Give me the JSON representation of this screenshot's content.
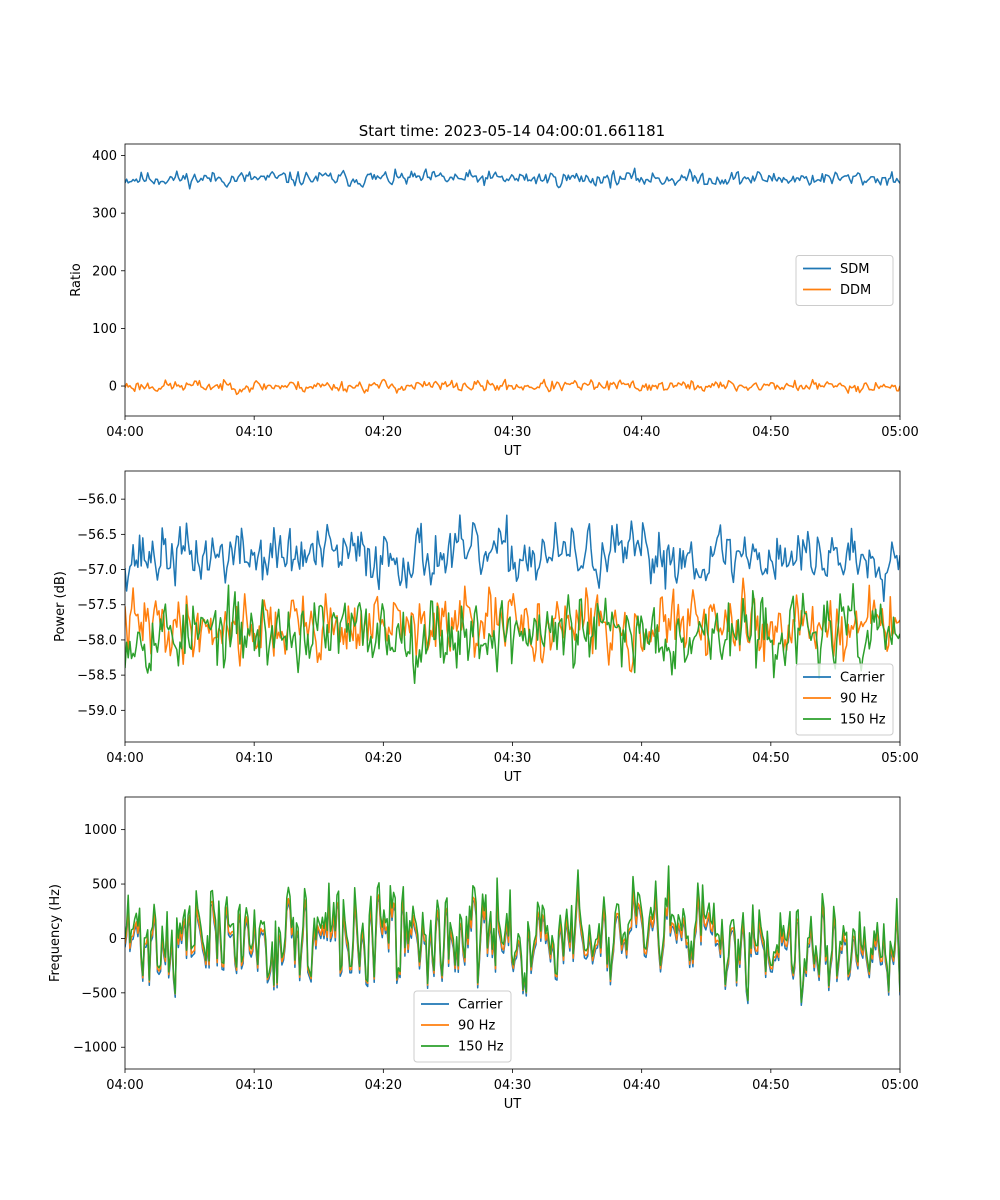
{
  "figure": {
    "title": "Start time: 2023-05-14 04:00:01.661181"
  },
  "chart_data": [
    {
      "type": "line",
      "xlabel": "UT",
      "ylabel": "Ratio",
      "x_ticks": [
        "04:00",
        "04:10",
        "04:20",
        "04:30",
        "04:40",
        "04:50",
        "05:00"
      ],
      "xlim": [
        0,
        60
      ],
      "ylim": [
        -52,
        420
      ],
      "y_ticks": [
        0,
        100,
        200,
        300,
        400
      ],
      "y_tick_labels": [
        "0",
        "100",
        "200",
        "300",
        "400"
      ],
      "legend_position": "center-right",
      "series": [
        {
          "name": "SDM",
          "color": "#1f77b4",
          "baseline": 360,
          "amplitude": 28,
          "seed": 11
        },
        {
          "name": "DDM",
          "color": "#ff7f0e",
          "baseline": 0,
          "amplitude": 22,
          "seed": 23
        }
      ]
    },
    {
      "type": "line",
      "xlabel": "UT",
      "ylabel": "Power (dB)",
      "x_ticks": [
        "04:00",
        "04:10",
        "04:20",
        "04:30",
        "04:40",
        "04:50",
        "05:00"
      ],
      "xlim": [
        0,
        60
      ],
      "ylim": [
        -59.45,
        -55.6
      ],
      "y_ticks": [
        -56.0,
        -56.5,
        -57.0,
        -57.5,
        -58.0,
        -58.5,
        -59.0
      ],
      "y_tick_labels": [
        "−56.0",
        "−56.5",
        "−57.0",
        "−57.5",
        "−58.0",
        "−58.5",
        "−59.0"
      ],
      "legend_position": "lower-right",
      "series": [
        {
          "name": "Carrier",
          "color": "#1f77b4",
          "baseline": -56.8,
          "amplitude": 0.9,
          "seed": 37
        },
        {
          "name": "90 Hz",
          "color": "#ff7f0e",
          "baseline": -57.8,
          "amplitude": 1.0,
          "seed": 41
        },
        {
          "name": "150 Hz",
          "color": "#2ca02c",
          "baseline": -57.9,
          "amplitude": 1.1,
          "seed": 53
        }
      ]
    },
    {
      "type": "line",
      "xlabel": "UT",
      "ylabel": "Frequency (Hz)",
      "x_ticks": [
        "04:00",
        "04:10",
        "04:20",
        "04:30",
        "04:40",
        "04:50",
        "05:00"
      ],
      "xlim": [
        0,
        60
      ],
      "ylim": [
        -1200,
        1300
      ],
      "y_ticks": [
        1000,
        500,
        0,
        -500,
        -1000
      ],
      "y_tick_labels": [
        "1000",
        "500",
        "0",
        "−500",
        "−1000"
      ],
      "legend_position": "lower-center",
      "series": [
        {
          "name": "Carrier",
          "color": "#1f77b4",
          "baseline": -50,
          "amplitude": 900,
          "seed": 71
        },
        {
          "name": "90 Hz",
          "color": "#ff7f0e",
          "baseline": -20,
          "amplitude": 900,
          "seed": 71
        },
        {
          "name": "150 Hz",
          "color": "#2ca02c",
          "baseline": 40,
          "amplitude": 1000,
          "seed": 71
        }
      ]
    }
  ]
}
